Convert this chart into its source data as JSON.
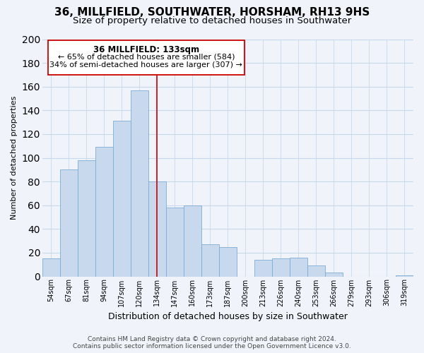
{
  "title": "36, MILLFIELD, SOUTHWATER, HORSHAM, RH13 9HS",
  "subtitle": "Size of property relative to detached houses in Southwater",
  "xlabel": "Distribution of detached houses by size in Southwater",
  "ylabel": "Number of detached properties",
  "bar_labels": [
    "54sqm",
    "67sqm",
    "81sqm",
    "94sqm",
    "107sqm",
    "120sqm",
    "134sqm",
    "147sqm",
    "160sqm",
    "173sqm",
    "187sqm",
    "200sqm",
    "213sqm",
    "226sqm",
    "240sqm",
    "253sqm",
    "266sqm",
    "279sqm",
    "293sqm",
    "306sqm",
    "319sqm"
  ],
  "bar_values": [
    15,
    90,
    98,
    109,
    131,
    157,
    80,
    58,
    60,
    27,
    25,
    0,
    14,
    15,
    16,
    9,
    3,
    0,
    0,
    0,
    1
  ],
  "bar_color": "#c8d8ed",
  "bar_edge_color": "#7aadd4",
  "grid_color": "#c8d8ed",
  "vline_x": 6,
  "vline_color": "#cc0000",
  "annotation_title": "36 MILLFIELD: 133sqm",
  "annotation_line1": "← 65% of detached houses are smaller (584)",
  "annotation_line2": "34% of semi-detached houses are larger (307) →",
  "annotation_box_color": "#ffffff",
  "annotation_box_edge": "#cc0000",
  "ylim": [
    0,
    200
  ],
  "yticks": [
    0,
    20,
    40,
    60,
    80,
    100,
    120,
    140,
    160,
    180,
    200
  ],
  "footer_line1": "Contains HM Land Registry data © Crown copyright and database right 2024.",
  "footer_line2": "Contains public sector information licensed under the Open Government Licence v3.0.",
  "bg_color": "#f0f4fa",
  "title_fontsize": 11,
  "subtitle_fontsize": 9.5,
  "xlabel_fontsize": 9,
  "ylabel_fontsize": 8,
  "tick_fontsize": 7,
  "footer_fontsize": 6.5,
  "ann_title_fontsize": 8.5,
  "ann_text_fontsize": 8
}
